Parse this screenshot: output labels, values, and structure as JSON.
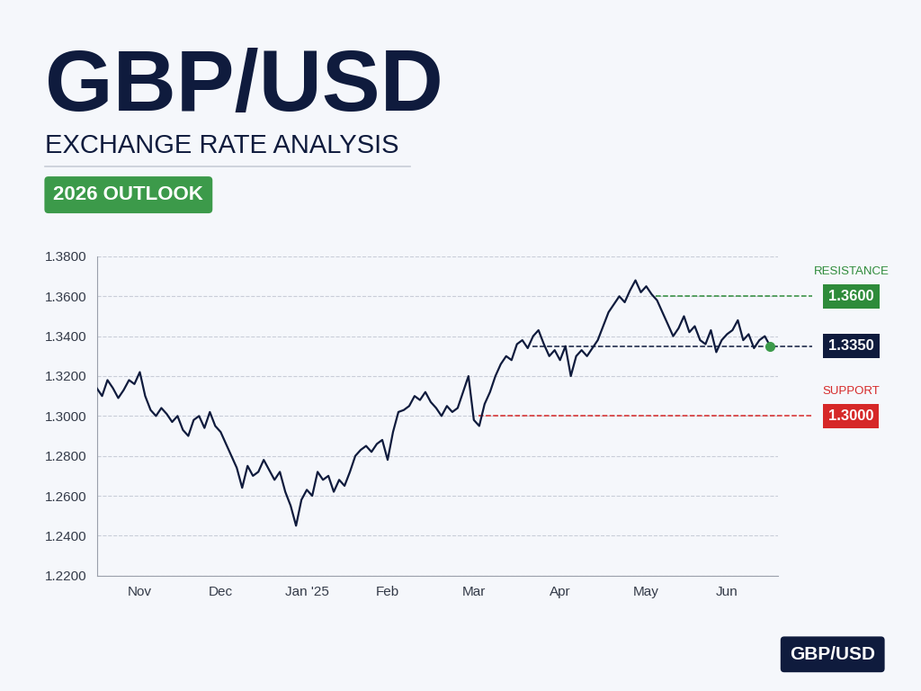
{
  "chart_data": {
    "type": "line",
    "title": "GBP/USD",
    "subtitle": "EXCHANGE RATE ANALYSIS",
    "badge": "2026 OUTLOOK",
    "footer": "GBP/USD",
    "categories": [
      null,
      null,
      null,
      null,
      null,
      null,
      null,
      null,
      "Nov",
      null,
      null,
      null,
      null,
      null,
      null,
      null,
      null,
      null,
      null,
      null,
      null,
      null,
      null,
      "Dec",
      null,
      null,
      null,
      null,
      null,
      null,
      null,
      null,
      null,
      null,
      null,
      null,
      null,
      null,
      null,
      "Jan '25",
      null,
      null,
      null,
      null,
      null,
      null,
      null,
      null,
      null,
      null,
      null,
      null,
      null,
      null,
      "Feb",
      null,
      null,
      null,
      null,
      null,
      null,
      null,
      null,
      null,
      null,
      null,
      null,
      null,
      null,
      null,
      "Mar",
      null,
      null,
      null,
      null,
      null,
      null,
      null,
      null,
      null,
      null,
      null,
      null,
      null,
      null,
      null,
      "Apr",
      null,
      null,
      null,
      null,
      null,
      null,
      null,
      null,
      null,
      null,
      null,
      null,
      null,
      null,
      null,
      "May",
      null,
      null,
      null,
      null,
      null,
      null,
      null,
      null,
      null,
      null,
      null,
      null,
      null,
      null,
      "Jun",
      null,
      null,
      null,
      null,
      null,
      null,
      null,
      null
    ],
    "values": [
      1.314,
      1.31,
      1.318,
      1.314,
      1.309,
      1.313,
      1.318,
      1.316,
      1.322,
      1.31,
      1.303,
      1.3,
      1.304,
      1.301,
      1.297,
      1.3,
      1.293,
      1.29,
      1.298,
      1.3,
      1.294,
      1.302,
      1.295,
      1.292,
      1.286,
      1.28,
      1.274,
      1.264,
      1.275,
      1.27,
      1.272,
      1.278,
      1.273,
      1.268,
      1.272,
      1.262,
      1.255,
      1.245,
      1.258,
      1.263,
      1.26,
      1.272,
      1.268,
      1.27,
      1.262,
      1.268,
      1.265,
      1.272,
      1.28,
      1.283,
      1.285,
      1.282,
      1.286,
      1.288,
      1.278,
      1.292,
      1.302,
      1.303,
      1.305,
      1.31,
      1.308,
      1.312,
      1.307,
      1.304,
      1.3,
      1.305,
      1.302,
      1.304,
      1.312,
      1.32,
      1.298,
      1.295,
      1.306,
      1.312,
      1.32,
      1.326,
      1.33,
      1.328,
      1.336,
      1.338,
      1.334,
      1.34,
      1.343,
      1.336,
      1.33,
      1.333,
      1.328,
      1.335,
      1.32,
      1.33,
      1.333,
      1.33,
      1.334,
      1.338,
      1.345,
      1.352,
      1.356,
      1.36,
      1.357,
      1.363,
      1.368,
      1.362,
      1.365,
      1.361,
      1.358,
      1.352,
      1.346,
      1.34,
      1.344,
      1.35,
      1.342,
      1.345,
      1.338,
      1.336,
      1.343,
      1.332,
      1.338,
      1.341,
      1.343,
      1.348,
      1.338,
      1.341,
      1.334,
      1.338,
      1.34,
      1.335
    ],
    "color": "#0f1b3d",
    "ylim": [
      1.22,
      1.38
    ],
    "yticks": [
      {
        "value": 1.22,
        "label": "1.2200"
      },
      {
        "value": 1.24,
        "label": "1.2400"
      },
      {
        "value": 1.26,
        "label": "1.2600"
      },
      {
        "value": 1.28,
        "label": "1.2800"
      },
      {
        "value": 1.3,
        "label": "1.3000"
      },
      {
        "value": 1.32,
        "label": "1.3200"
      },
      {
        "value": 1.34,
        "label": "1.3400"
      },
      {
        "value": 1.36,
        "label": "1.3600"
      },
      {
        "value": 1.38,
        "label": "1.3800"
      }
    ],
    "grid": true,
    "levels": [
      {
        "name": "RESISTANCE",
        "value": 1.36,
        "label": "1.3600",
        "color": "#2e8b3a"
      },
      {
        "value": 1.335,
        "label": "1.3350",
        "color": "#0f1b3d"
      },
      {
        "name": "SUPPORT",
        "value": 1.3,
        "label": "1.3000",
        "color": "#d62828"
      }
    ]
  }
}
